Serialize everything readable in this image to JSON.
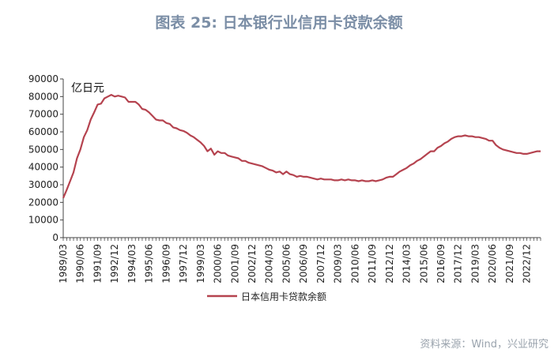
{
  "title": "图表 25: 日本银行业信用卡贷款余额",
  "source": "资料来源：Wind，兴业研究",
  "colors": {
    "series": "#b5434f",
    "title": "#7b8ea6",
    "source": "#9aa3ad"
  },
  "chart_data": {
    "type": "line",
    "unit": "亿日元",
    "ylim": [
      0,
      90000
    ],
    "y_ticks": [
      0,
      10000,
      20000,
      30000,
      40000,
      50000,
      60000,
      70000,
      80000,
      90000
    ],
    "x_ticks": [
      "1989/03",
      "1990/06",
      "1991/09",
      "1992/12",
      "1994/03",
      "1995/06",
      "1996/09",
      "1997/12",
      "1999/03",
      "2000/06",
      "2001/09",
      "2002/12",
      "2004/03",
      "2005/06",
      "2006/09",
      "2007/12",
      "2009/03",
      "2010/06",
      "2011/09",
      "2012/12",
      "2014/03",
      "2015/06",
      "2016/09",
      "2017/12",
      "2019/03",
      "2020/06",
      "2021/09",
      "2022/12"
    ],
    "grid": false,
    "legend_position": "bottom",
    "series": [
      {
        "name": "日本信用卡贷款余额",
        "color": "#b5434f",
        "points": [
          [
            "1989/03",
            22500
          ],
          [
            "1989/06",
            27000
          ],
          [
            "1989/09",
            32000
          ],
          [
            "1989/12",
            37000
          ],
          [
            "1990/03",
            45000
          ],
          [
            "1990/06",
            50000
          ],
          [
            "1990/09",
            57000
          ],
          [
            "1990/12",
            61000
          ],
          [
            "1991/03",
            67000
          ],
          [
            "1991/06",
            71000
          ],
          [
            "1991/09",
            75500
          ],
          [
            "1991/12",
            76000
          ],
          [
            "1992/03",
            79000
          ],
          [
            "1992/06",
            80000
          ],
          [
            "1992/09",
            81000
          ],
          [
            "1992/12",
            80000
          ],
          [
            "1993/03",
            80500
          ],
          [
            "1993/06",
            80000
          ],
          [
            "1993/09",
            79500
          ],
          [
            "1993/12",
            77000
          ],
          [
            "1994/03",
            77000
          ],
          [
            "1994/06",
            77000
          ],
          [
            "1994/09",
            75500
          ],
          [
            "1994/12",
            73000
          ],
          [
            "1995/03",
            72500
          ],
          [
            "1995/06",
            71000
          ],
          [
            "1995/09",
            69000
          ],
          [
            "1995/12",
            67000
          ],
          [
            "1996/03",
            66500
          ],
          [
            "1996/06",
            66500
          ],
          [
            "1996/09",
            65000
          ],
          [
            "1996/12",
            64500
          ],
          [
            "1997/03",
            62500
          ],
          [
            "1997/06",
            62000
          ],
          [
            "1997/09",
            61000
          ],
          [
            "1997/12",
            60500
          ],
          [
            "1998/03",
            59500
          ],
          [
            "1998/06",
            58000
          ],
          [
            "1998/09",
            57000
          ],
          [
            "1998/12",
            55500
          ],
          [
            "1999/03",
            54000
          ],
          [
            "1999/06",
            52000
          ],
          [
            "1999/09",
            49000
          ],
          [
            "1999/12",
            50500
          ],
          [
            "2000/03",
            47000
          ],
          [
            "2000/06",
            49000
          ],
          [
            "2000/09",
            48000
          ],
          [
            "2000/12",
            48000
          ],
          [
            "2001/03",
            46500
          ],
          [
            "2001/06",
            46000
          ],
          [
            "2001/09",
            45500
          ],
          [
            "2001/12",
            45000
          ],
          [
            "2002/03",
            43500
          ],
          [
            "2002/06",
            43500
          ],
          [
            "2002/09",
            42500
          ],
          [
            "2002/12",
            42000
          ],
          [
            "2003/03",
            41500
          ],
          [
            "2003/06",
            41000
          ],
          [
            "2003/09",
            40500
          ],
          [
            "2003/12",
            39500
          ],
          [
            "2004/03",
            38500
          ],
          [
            "2004/06",
            38000
          ],
          [
            "2004/09",
            37000
          ],
          [
            "2004/12",
            37500
          ],
          [
            "2005/03",
            36000
          ],
          [
            "2005/06",
            37500
          ],
          [
            "2005/09",
            36000
          ],
          [
            "2005/12",
            35500
          ],
          [
            "2006/03",
            34500
          ],
          [
            "2006/06",
            35000
          ],
          [
            "2006/09",
            34500
          ],
          [
            "2006/12",
            34500
          ],
          [
            "2007/03",
            34000
          ],
          [
            "2007/06",
            33500
          ],
          [
            "2007/09",
            33000
          ],
          [
            "2007/12",
            33500
          ],
          [
            "2008/03",
            33000
          ],
          [
            "2008/06",
            33000
          ],
          [
            "2008/09",
            33000
          ],
          [
            "2008/12",
            32500
          ],
          [
            "2009/03",
            32500
          ],
          [
            "2009/06",
            33000
          ],
          [
            "2009/09",
            32500
          ],
          [
            "2009/12",
            33000
          ],
          [
            "2010/03",
            32500
          ],
          [
            "2010/06",
            32500
          ],
          [
            "2010/09",
            32000
          ],
          [
            "2010/12",
            32500
          ],
          [
            "2011/03",
            32000
          ],
          [
            "2011/06",
            32000
          ],
          [
            "2011/09",
            32500
          ],
          [
            "2011/12",
            32000
          ],
          [
            "2012/03",
            32500
          ],
          [
            "2012/06",
            33000
          ],
          [
            "2012/09",
            34000
          ],
          [
            "2012/12",
            34500
          ],
          [
            "2013/03",
            34500
          ],
          [
            "2013/06",
            36000
          ],
          [
            "2013/09",
            37500
          ],
          [
            "2013/12",
            38500
          ],
          [
            "2014/03",
            39500
          ],
          [
            "2014/06",
            41000
          ],
          [
            "2014/09",
            42000
          ],
          [
            "2014/12",
            43500
          ],
          [
            "2015/03",
            44500
          ],
          [
            "2015/06",
            46000
          ],
          [
            "2015/09",
            47500
          ],
          [
            "2015/12",
            49000
          ],
          [
            "2016/03",
            49000
          ],
          [
            "2016/06",
            51000
          ],
          [
            "2016/09",
            52000
          ],
          [
            "2016/12",
            53500
          ],
          [
            "2017/03",
            54500
          ],
          [
            "2017/06",
            56000
          ],
          [
            "2017/09",
            57000
          ],
          [
            "2017/12",
            57500
          ],
          [
            "2018/03",
            57500
          ],
          [
            "2018/06",
            58000
          ],
          [
            "2018/09",
            57500
          ],
          [
            "2018/12",
            57500
          ],
          [
            "2019/03",
            57000
          ],
          [
            "2019/06",
            57000
          ],
          [
            "2019/09",
            56500
          ],
          [
            "2019/12",
            56000
          ],
          [
            "2020/03",
            55000
          ],
          [
            "2020/06",
            55000
          ],
          [
            "2020/09",
            52500
          ],
          [
            "2020/12",
            51000
          ],
          [
            "2021/03",
            50000
          ],
          [
            "2021/06",
            49500
          ],
          [
            "2021/09",
            49000
          ],
          [
            "2021/12",
            48500
          ],
          [
            "2022/03",
            48000
          ],
          [
            "2022/06",
            48000
          ],
          [
            "2022/09",
            47500
          ],
          [
            "2022/12",
            47500
          ],
          [
            "2023/03",
            48000
          ],
          [
            "2023/06",
            48500
          ],
          [
            "2023/09",
            49000
          ],
          [
            "2023/12",
            49000
          ]
        ]
      }
    ]
  }
}
